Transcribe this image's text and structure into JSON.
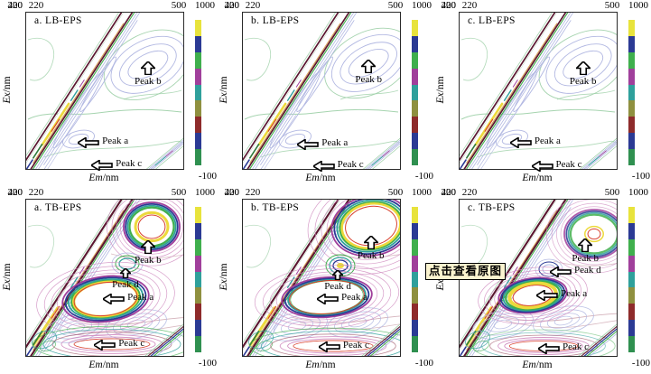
{
  "overlay_button": {
    "label": "点击查看原图"
  },
  "axes": {
    "y_label_var": "Ex",
    "y_label_unit": "/nm",
    "x_label_var": "Em",
    "x_label_unit": "/nm",
    "y_ticks": [
      "400",
      "220"
    ],
    "x_ticks": [
      "220",
      "500"
    ],
    "colorbar_max": "1000",
    "colorbar_min": "-100"
  },
  "colorbar": {
    "max": 1000,
    "min": -100,
    "colors": [
      "#e8e33c",
      "#2b3a94",
      "#3faf4d",
      "#a03f9b",
      "#2fa09b",
      "#8f903f",
      "#8e2b2b",
      "#2b3a94",
      "#2f9050"
    ]
  },
  "chart_data": [
    {
      "id": "a-lb",
      "type": "contour",
      "title": "a. LB-EPS",
      "xlabel": "Em/nm",
      "ylabel": "Ex/nm",
      "xlim": [
        220,
        500
      ],
      "ylim": [
        220,
        400
      ],
      "colorbar_range": [
        -100,
        1000
      ],
      "peaks": [
        {
          "label": "Peak b",
          "arrow": "up",
          "em": 437,
          "ex": 344
        },
        {
          "label": "Peak a",
          "arrow": "left",
          "em": 312,
          "ex": 250
        },
        {
          "label": "Peak c",
          "arrow": "left",
          "em": 336,
          "ex": 224
        }
      ]
    },
    {
      "id": "b-lb",
      "type": "contour",
      "title": "b. LB-EPS",
      "xlabel": "Em/nm",
      "ylabel": "Ex/nm",
      "xlim": [
        220,
        500
      ],
      "ylim": [
        220,
        400
      ],
      "colorbar_range": [
        -100,
        1000
      ],
      "peaks": [
        {
          "label": "Peak b",
          "arrow": "up",
          "em": 444,
          "ex": 346
        },
        {
          "label": "Peak a",
          "arrow": "left",
          "em": 317,
          "ex": 248
        },
        {
          "label": "Peak c",
          "arrow": "left",
          "em": 345,
          "ex": 223
        }
      ]
    },
    {
      "id": "c-lb",
      "type": "contour",
      "title": "c. LB-EPS",
      "xlabel": "Em/nm",
      "ylabel": "Ex/nm",
      "xlim": [
        220,
        500
      ],
      "ylim": [
        220,
        400
      ],
      "colorbar_range": [
        -100,
        1000
      ],
      "peaks": [
        {
          "label": "Peak b",
          "arrow": "up",
          "em": 440,
          "ex": 344
        },
        {
          "label": "Peak a",
          "arrow": "left",
          "em": 310,
          "ex": 250
        },
        {
          "label": "Peak c",
          "arrow": "left",
          "em": 348,
          "ex": 223
        }
      ]
    },
    {
      "id": "a-tb",
      "type": "contour",
      "title": "a. TB-EPS",
      "xlabel": "Em/nm",
      "ylabel": "Ex/nm",
      "xlim": [
        220,
        500
      ],
      "ylim": [
        220,
        400
      ],
      "colorbar_range": [
        -100,
        1000
      ],
      "peaks": [
        {
          "label": "Peak b",
          "arrow": "up",
          "em": 437,
          "ex": 353
        },
        {
          "label": "Peak d",
          "arrow": "up-small",
          "em": 397,
          "ex": 321
        },
        {
          "label": "Peak a",
          "arrow": "left",
          "em": 357,
          "ex": 286
        },
        {
          "label": "Peak c",
          "arrow": "left",
          "em": 341,
          "ex": 232
        }
      ]
    },
    {
      "id": "b-tb",
      "type": "contour",
      "title": "b. TB-EPS",
      "xlabel": "Em/nm",
      "ylabel": "Ex/nm",
      "xlim": [
        220,
        500
      ],
      "ylim": [
        220,
        400
      ],
      "colorbar_range": [
        -100,
        1000
      ],
      "peaks": [
        {
          "label": "Peak b",
          "arrow": "up",
          "em": 448,
          "ex": 358
        },
        {
          "label": "Peak d",
          "arrow": "up-small",
          "em": 389,
          "ex": 319
        },
        {
          "label": "Peak a",
          "arrow": "left",
          "em": 352,
          "ex": 286
        },
        {
          "label": "Peak c",
          "arrow": "left",
          "em": 355,
          "ex": 230
        }
      ]
    },
    {
      "id": "c-tb",
      "type": "contour",
      "title": "c. TB-EPS",
      "xlabel": "Em/nm",
      "ylabel": "Ex/nm",
      "xlim": [
        220,
        500
      ],
      "ylim": [
        220,
        400
      ],
      "colorbar_range": [
        -100,
        1000
      ],
      "peaks": [
        {
          "label": "Peak b",
          "arrow": "up",
          "em": 444,
          "ex": 355
        },
        {
          "label": "Peak d",
          "arrow": "left",
          "em": 381,
          "ex": 317
        },
        {
          "label": "Peak a",
          "arrow": "left",
          "em": 357,
          "ex": 290
        },
        {
          "label": "Peak c",
          "arrow": "left",
          "em": 360,
          "ex": 228
        }
      ]
    }
  ]
}
